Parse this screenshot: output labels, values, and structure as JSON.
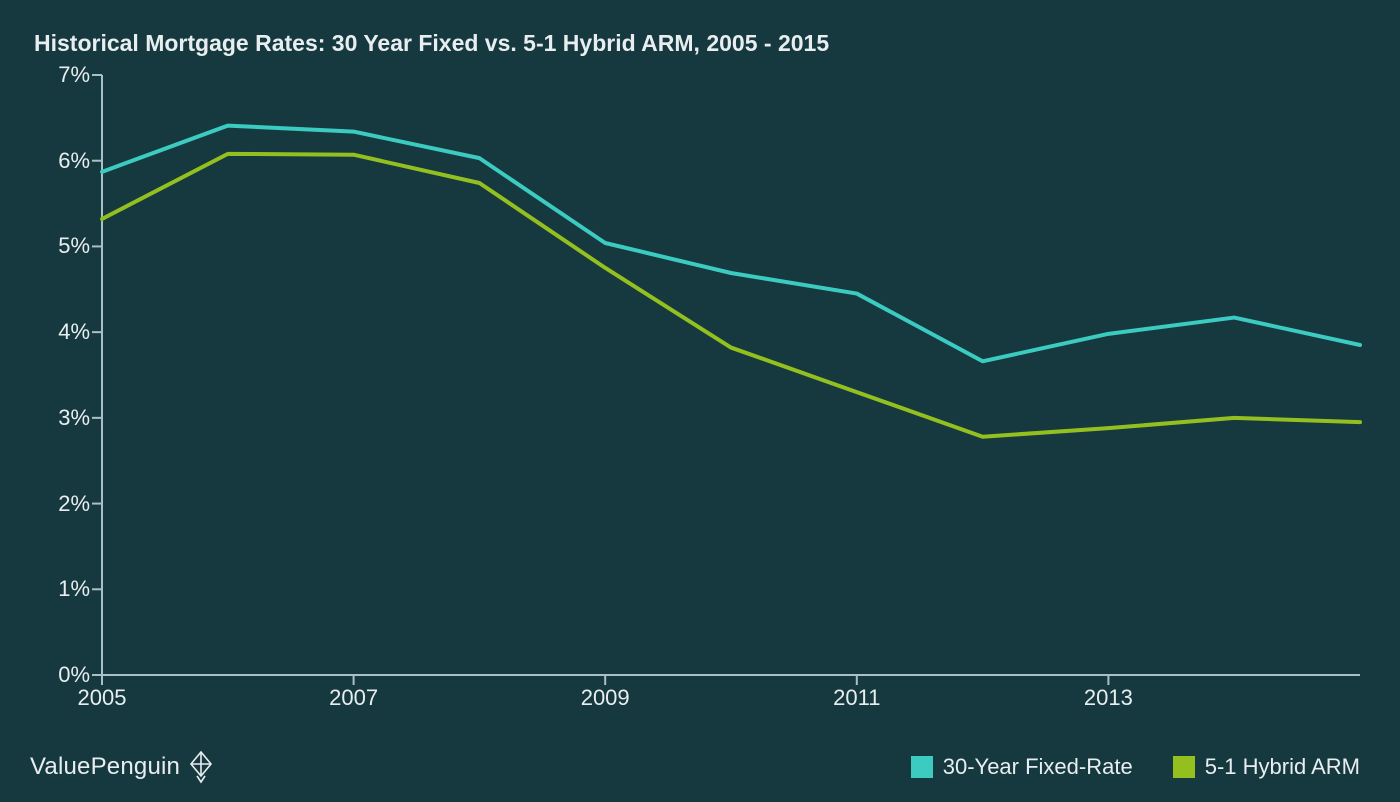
{
  "chart": {
    "type": "line",
    "title": "Historical Mortgage Rates: 30 Year Fixed vs. 5-1 Hybrid ARM, 2005 - 2015",
    "background_color": "#16383f",
    "title_color": "#e8eef0",
    "title_fontsize": 23,
    "axis_text_color": "#e8eef0",
    "axis_line_color": "#a9c1c5",
    "axis_fontsize": 22,
    "x": {
      "min": 2005,
      "max": 2015,
      "ticks": [
        2005,
        2007,
        2009,
        2011,
        2013
      ],
      "tick_labels": [
        "2005",
        "2007",
        "2009",
        "2011",
        "2013"
      ],
      "tick_len": 10
    },
    "y": {
      "min": 0,
      "max": 7,
      "ticks": [
        0,
        1,
        2,
        3,
        4,
        5,
        6,
        7
      ],
      "tick_labels": [
        "0%",
        "1%",
        "2%",
        "3%",
        "4%",
        "5%",
        "6%",
        "7%"
      ],
      "tick_len": 10
    },
    "series": [
      {
        "name": "30-Year Fixed-Rate",
        "color": "#3bcbc1",
        "x": [
          2005,
          2006,
          2007,
          2008,
          2009,
          2010,
          2011,
          2012,
          2013,
          2014,
          2015
        ],
        "y": [
          5.87,
          6.41,
          6.34,
          6.03,
          5.04,
          4.69,
          4.45,
          3.66,
          3.98,
          4.17,
          3.85
        ]
      },
      {
        "name": "5-1 Hybrid ARM",
        "color": "#93c01f",
        "x": [
          2005,
          2006,
          2007,
          2008,
          2009,
          2010,
          2011,
          2012,
          2013,
          2014,
          2015
        ],
        "y": [
          5.32,
          6.08,
          6.07,
          5.74,
          4.75,
          3.82,
          3.3,
          2.78,
          2.88,
          3.0,
          2.95
        ]
      }
    ],
    "line_width": 4
  },
  "legend": {
    "items": [
      {
        "label": "30-Year Fixed-Rate",
        "color": "#3bcbc1"
      },
      {
        "label": "5-1 Hybrid ARM",
        "color": "#93c01f"
      }
    ],
    "text_color": "#e8eef0",
    "fontsize": 22
  },
  "brand": {
    "text": "ValuePenguin",
    "color": "#e8eef0",
    "icon_color": "#e8eef0"
  }
}
